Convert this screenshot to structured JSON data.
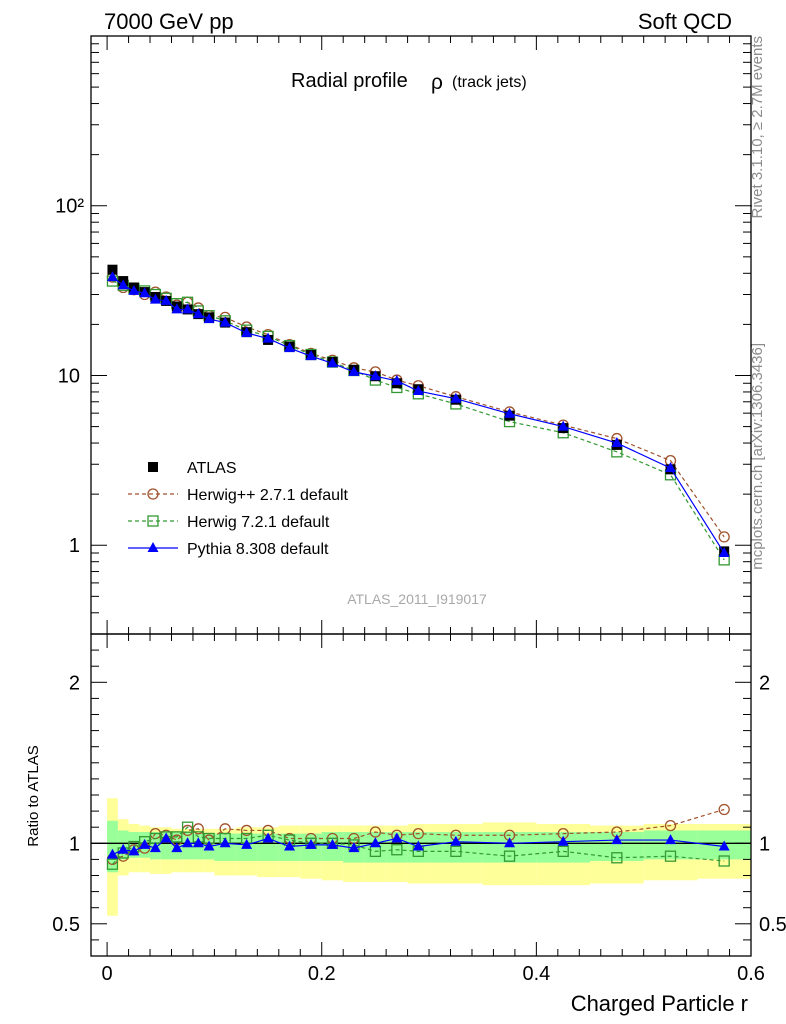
{
  "header": {
    "left": "7000 GeV pp",
    "right": "Soft QCD"
  },
  "side_labels": {
    "rivet": "Rivet 3.1.10, ≥ 2.7M events",
    "mcplots": "mcplots.cern.ch [arXiv:1306.3436]"
  },
  "colors": {
    "atlas": "#000000",
    "herwigpp": "#a0522d",
    "herwig7": "#339933",
    "pythia": "#0000ff",
    "band_yellow": "#ffff99",
    "band_green": "#99ff99"
  },
  "chart_data": [
    {
      "type": "scatter",
      "panel": "main",
      "title": "Radial profile",
      "title_symbol": "ρ",
      "title_suffix": "(track jets)",
      "watermark": "ATLAS_2011_I919017",
      "xlabel": "Charged Particle r",
      "ylabel": "",
      "yscale": "log",
      "xlim": [
        -0.015,
        0.6
      ],
      "ylim": [
        0.3,
        1000
      ],
      "ytick_labels": [
        "1",
        "10",
        "10²"
      ],
      "xtick_labels": [
        "0",
        "0.2",
        "0.4",
        "0.6"
      ],
      "legend_position": "lower-left",
      "x": [
        0.005,
        0.015,
        0.025,
        0.035,
        0.045,
        0.055,
        0.065,
        0.075,
        0.085,
        0.095,
        0.11,
        0.13,
        0.15,
        0.17,
        0.19,
        0.21,
        0.23,
        0.25,
        0.27,
        0.29,
        0.325,
        0.375,
        0.425,
        0.475,
        0.525,
        0.575
      ],
      "series": [
        {
          "name": "ATLAS",
          "key": "atlas",
          "style": "data",
          "values": [
            42,
            36,
            33,
            31,
            29,
            27.5,
            25.5,
            24.5,
            23,
            22,
            20.5,
            18,
            16.2,
            14.8,
            13.2,
            12,
            10.8,
            9.9,
            9,
            8.3,
            7.2,
            5.8,
            4.9,
            3.9,
            2.8,
            0.92
          ]
        },
        {
          "name": "Herwig++ 2.7.1 default",
          "key": "herwigpp",
          "style": "circle",
          "values": [
            38,
            33,
            32,
            30,
            31,
            29,
            26,
            27,
            25,
            22.5,
            22,
            19.3,
            17.4,
            15.2,
            13.5,
            12.3,
            11.1,
            10.5,
            9.4,
            8.7,
            7.5,
            6.1,
            5.1,
            4.25,
            3.15,
            1.12
          ]
        },
        {
          "name": "Herwig 7.2.1 default",
          "key": "herwig7",
          "style": "square",
          "values": [
            36,
            34,
            32.5,
            31.5,
            30,
            28.5,
            26.5,
            27,
            24,
            22.5,
            21,
            18.5,
            17,
            15,
            13.3,
            12,
            10.7,
            9.4,
            8.5,
            7.8,
            6.8,
            5.35,
            4.6,
            3.55,
            2.6,
            0.82
          ]
        },
        {
          "name": "Pythia 8.308 default",
          "key": "pythia",
          "style": "triangle",
          "values": [
            38,
            34,
            31.5,
            30.5,
            28,
            27.5,
            24.5,
            24.5,
            23,
            21.5,
            20.5,
            17.8,
            16.5,
            14.5,
            13,
            11.8,
            10.5,
            9.9,
            9.3,
            8.1,
            7.3,
            5.95,
            5,
            4,
            2.85,
            0.9
          ]
        }
      ]
    },
    {
      "type": "scatter",
      "panel": "ratio",
      "xlabel": "Charged Particle r",
      "ylabel": "Ratio to ATLAS",
      "ylim": [
        0.3,
        2.3
      ],
      "ytick_labels": [
        "0.5",
        "1",
        "2"
      ],
      "xtick_labels": [
        "0",
        "0.2",
        "0.4",
        "0.6"
      ],
      "x": [
        0.005,
        0.015,
        0.025,
        0.035,
        0.045,
        0.055,
        0.065,
        0.075,
        0.085,
        0.095,
        0.11,
        0.13,
        0.15,
        0.17,
        0.19,
        0.21,
        0.23,
        0.25,
        0.27,
        0.29,
        0.325,
        0.375,
        0.425,
        0.475,
        0.525,
        0.575
      ],
      "bin_edges": [
        0,
        0.01,
        0.02,
        0.03,
        0.04,
        0.05,
        0.06,
        0.07,
        0.08,
        0.09,
        0.1,
        0.12,
        0.14,
        0.16,
        0.18,
        0.2,
        0.22,
        0.24,
        0.26,
        0.28,
        0.3,
        0.35,
        0.4,
        0.45,
        0.5,
        0.55,
        0.6
      ],
      "band_yellow_lo": [
        0.55,
        0.8,
        0.82,
        0.82,
        0.81,
        0.81,
        0.82,
        0.82,
        0.82,
        0.82,
        0.8,
        0.8,
        0.79,
        0.79,
        0.78,
        0.77,
        0.76,
        0.76,
        0.76,
        0.75,
        0.75,
        0.74,
        0.74,
        0.75,
        0.77,
        0.78
      ],
      "band_yellow_hi": [
        1.28,
        1.15,
        1.12,
        1.11,
        1.1,
        1.1,
        1.09,
        1.09,
        1.09,
        1.09,
        1.09,
        1.1,
        1.1,
        1.11,
        1.11,
        1.11,
        1.11,
        1.11,
        1.11,
        1.12,
        1.12,
        1.13,
        1.12,
        1.11,
        1.12,
        1.12
      ],
      "band_green_lo": [
        0.82,
        0.9,
        0.91,
        0.91,
        0.9,
        0.9,
        0.9,
        0.9,
        0.9,
        0.9,
        0.89,
        0.89,
        0.89,
        0.89,
        0.89,
        0.89,
        0.88,
        0.88,
        0.88,
        0.88,
        0.88,
        0.88,
        0.88,
        0.89,
        0.9,
        0.9
      ],
      "band_green_hi": [
        1.14,
        1.08,
        1.07,
        1.07,
        1.07,
        1.07,
        1.07,
        1.07,
        1.06,
        1.06,
        1.06,
        1.06,
        1.06,
        1.06,
        1.06,
        1.07,
        1.07,
        1.07,
        1.07,
        1.07,
        1.07,
        1.07,
        1.07,
        1.07,
        1.08,
        1.08
      ],
      "series": [
        {
          "name": "Herwig++ 2.7.1 default",
          "key": "herwigpp",
          "style": "circle",
          "values": [
            0.9,
            0.92,
            0.96,
            0.97,
            1.06,
            1.05,
            1.02,
            1.08,
            1.09,
            1.02,
            1.09,
            1.08,
            1.08,
            1.03,
            1.03,
            1.03,
            1.03,
            1.07,
            1.05,
            1.06,
            1.05,
            1.05,
            1.06,
            1.07,
            1.11,
            1.21
          ]
        },
        {
          "name": "Herwig 7.2.1 default",
          "key": "herwig7",
          "style": "square",
          "values": [
            0.87,
            0.94,
            0.98,
            1.01,
            1.03,
            1.04,
            1.04,
            1.1,
            1.04,
            1.03,
            1.03,
            1.03,
            1.05,
            1.02,
            1.0,
            1.0,
            0.99,
            0.95,
            0.96,
            0.95,
            0.95,
            0.92,
            0.95,
            0.91,
            0.92,
            0.89
          ]
        },
        {
          "name": "Pythia 8.308 default",
          "key": "pythia",
          "style": "triangle",
          "values": [
            0.93,
            0.96,
            0.95,
            0.99,
            0.97,
            1.03,
            0.97,
            1.0,
            1.0,
            0.98,
            1.0,
            0.99,
            1.03,
            0.98,
            0.99,
            0.99,
            0.97,
            1.0,
            1.03,
            0.98,
            1.01,
            1.0,
            1.01,
            1.02,
            1.02,
            0.98
          ]
        }
      ]
    }
  ]
}
